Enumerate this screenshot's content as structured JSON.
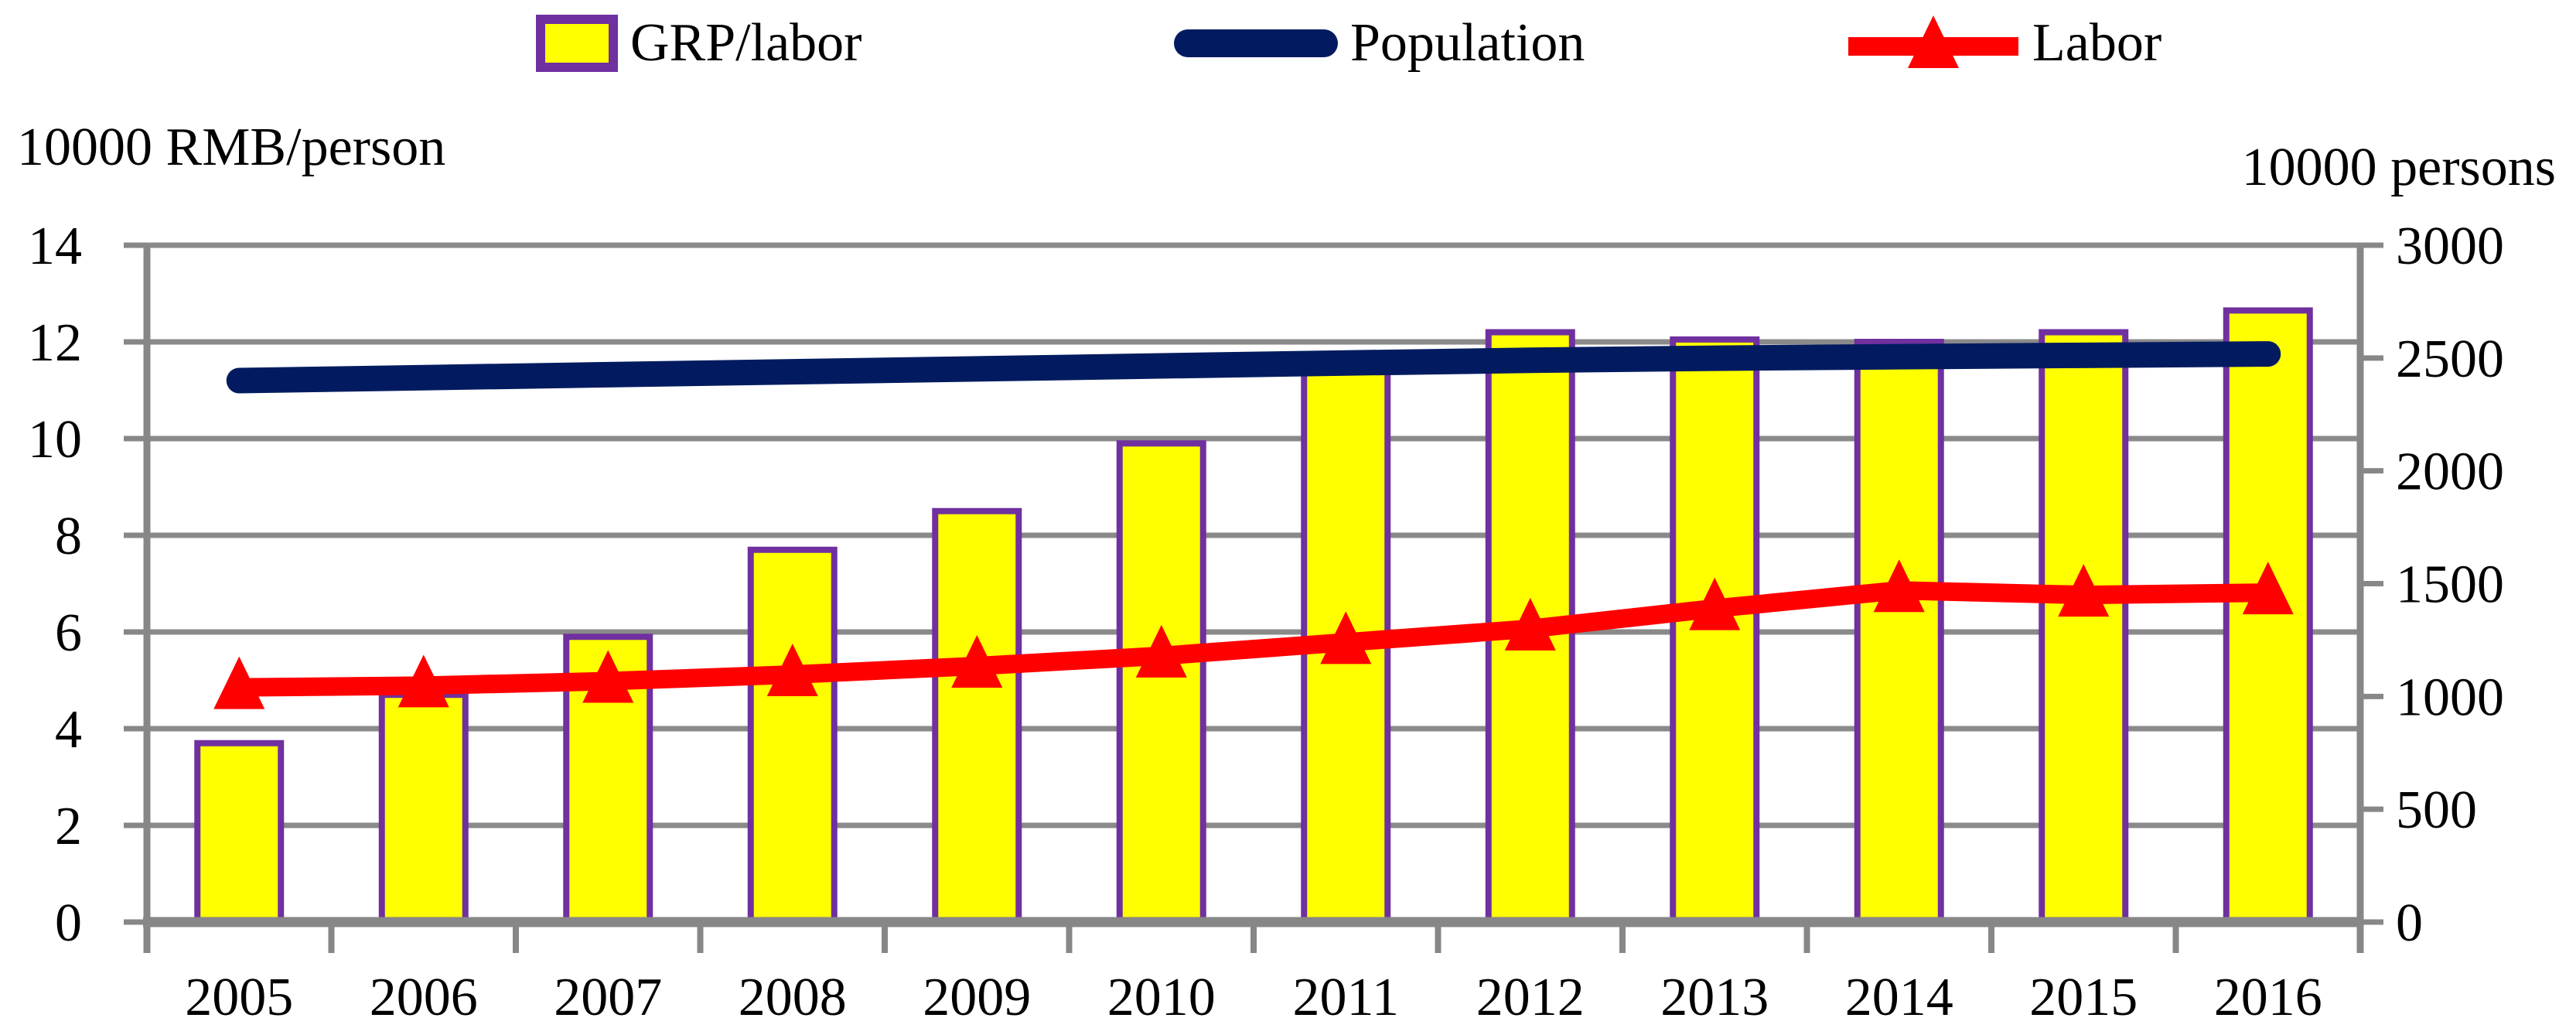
{
  "figure": {
    "background": "#ffffff",
    "axis_color": "#878787",
    "text_color": "#000000"
  },
  "chart_data": {
    "type": "combo",
    "categories": [
      "2005",
      "2006",
      "2007",
      "2008",
      "2009",
      "2010",
      "2011",
      "2012",
      "2013",
      "2014",
      "2015",
      "2016"
    ],
    "series": [
      {
        "name": "GRP/labor",
        "type": "bar",
        "axis": "left",
        "color": "#FFFF00",
        "border_color": "#7030A0",
        "values": [
          3.7,
          4.7,
          5.9,
          7.7,
          8.5,
          9.9,
          11.4,
          12.2,
          12.05,
          12.0,
          12.2,
          12.65
        ]
      },
      {
        "name": "Population",
        "type": "line",
        "axis": "right",
        "color": "#021B60",
        "values": [
          2400,
          2413,
          2426,
          2439,
          2452,
          2465,
          2478,
          2490,
          2499,
          2506,
          2512,
          2518
        ]
      },
      {
        "name": "Labor",
        "type": "line",
        "axis": "right",
        "marker": "triangle",
        "color": "#FF0000",
        "values": [
          1040,
          1048,
          1068,
          1097,
          1135,
          1180,
          1240,
          1300,
          1390,
          1470,
          1450,
          1460
        ]
      }
    ],
    "left_axis": {
      "title": "10000 RMB/person",
      "min": 0,
      "max": 14,
      "tick_step": 2,
      "ticks": [
        0,
        2,
        4,
        6,
        8,
        10,
        12,
        14
      ]
    },
    "right_axis": {
      "title": "10000 persons",
      "min": 0,
      "max": 3000,
      "tick_step": 500,
      "ticks": [
        0,
        500,
        1000,
        1500,
        2000,
        2500,
        3000
      ]
    },
    "grid": true,
    "grid_color": "#8A8A8A",
    "legend_position": "top"
  }
}
